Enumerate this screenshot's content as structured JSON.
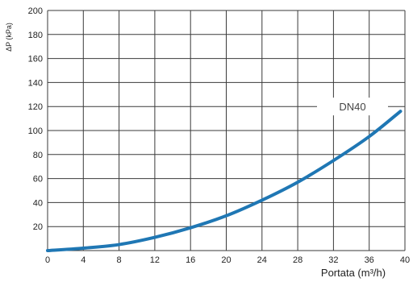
{
  "chart_data": {
    "type": "line",
    "title": "",
    "xlabel": "Portata (m³/h)",
    "ylabel": "ΔP (kPa)",
    "xlim": [
      0,
      40
    ],
    "ylim": [
      0,
      200
    ],
    "x_ticks": [
      "0",
      "4",
      "8",
      "12",
      "16",
      "20",
      "24",
      "28",
      "32",
      "36",
      "40"
    ],
    "y_ticks": [
      "20",
      "40",
      "60",
      "80",
      "100",
      "120",
      "140",
      "160",
      "180",
      "200"
    ],
    "grid": true,
    "series": [
      {
        "name": "DN40",
        "color": "#1f77b4",
        "x": [
          0,
          4,
          8,
          12,
          16,
          20,
          24,
          28,
          32,
          36,
          39.5
        ],
        "y": [
          0,
          2,
          5,
          11,
          19,
          29,
          42,
          57,
          75,
          95,
          116
        ]
      }
    ]
  }
}
